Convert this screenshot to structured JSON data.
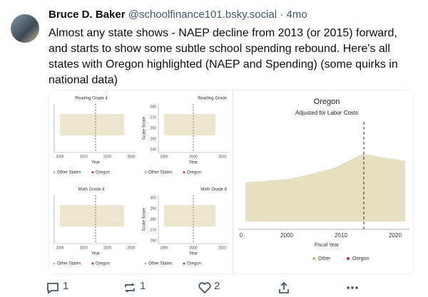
{
  "post": {
    "author": "Bruce D. Baker",
    "handle": "@schoolfinance101.bsky.social",
    "separator": "·",
    "time": "4mo",
    "text_lines": [
      "Almost any state shows - NAEP decline from 2013 (or 2015) forward,",
      "and starts to show some subtle school spending rebound. Here's all",
      "states with Oregon highlighted (NAEP and Spending) (some quirks in",
      "national data)"
    ],
    "image": {
      "panels": [
        {
          "title": "Reading Grade 4",
          "x_ticks": [
            2000,
            2010,
            2020,
            2030
          ],
          "x_label": "Year",
          "legend": [
            "Other States",
            "Oregon"
          ]
        },
        {
          "title": "Reading Grade",
          "y_label": "Scale Score",
          "y_ticks": [
            280,
            270,
            260,
            250,
            240
          ],
          "x_ticks": [
            1990,
            2000,
            2010
          ],
          "x_label": "Year",
          "legend": [
            "Other States",
            "Oregon"
          ]
        },
        {
          "title": "Math Grade 4",
          "x_ticks": [
            2000,
            2010,
            2020,
            2030
          ],
          "x_label": "Year",
          "legend": [
            "Other States",
            "Oregon"
          ]
        },
        {
          "title": "Math Grade 8",
          "y_label": "Scale Score",
          "y_ticks": [
            300,
            290,
            280,
            270,
            260
          ],
          "x_ticks": [
            1990,
            2000,
            2010
          ],
          "x_label": "Year",
          "legend": [
            "Other States",
            "Oregon"
          ]
        }
      ],
      "main": {
        "title": "Oregon",
        "subtitle": "Adjusted for Labor Costs",
        "x_ticks": [
          0,
          2000,
          2010,
          2020
        ],
        "x_label": "Fiscal Year",
        "legend": [
          "Other",
          "Oregon"
        ]
      }
    },
    "actions": {
      "replies": 1,
      "reposts": 1,
      "likes": 2
    }
  }
}
